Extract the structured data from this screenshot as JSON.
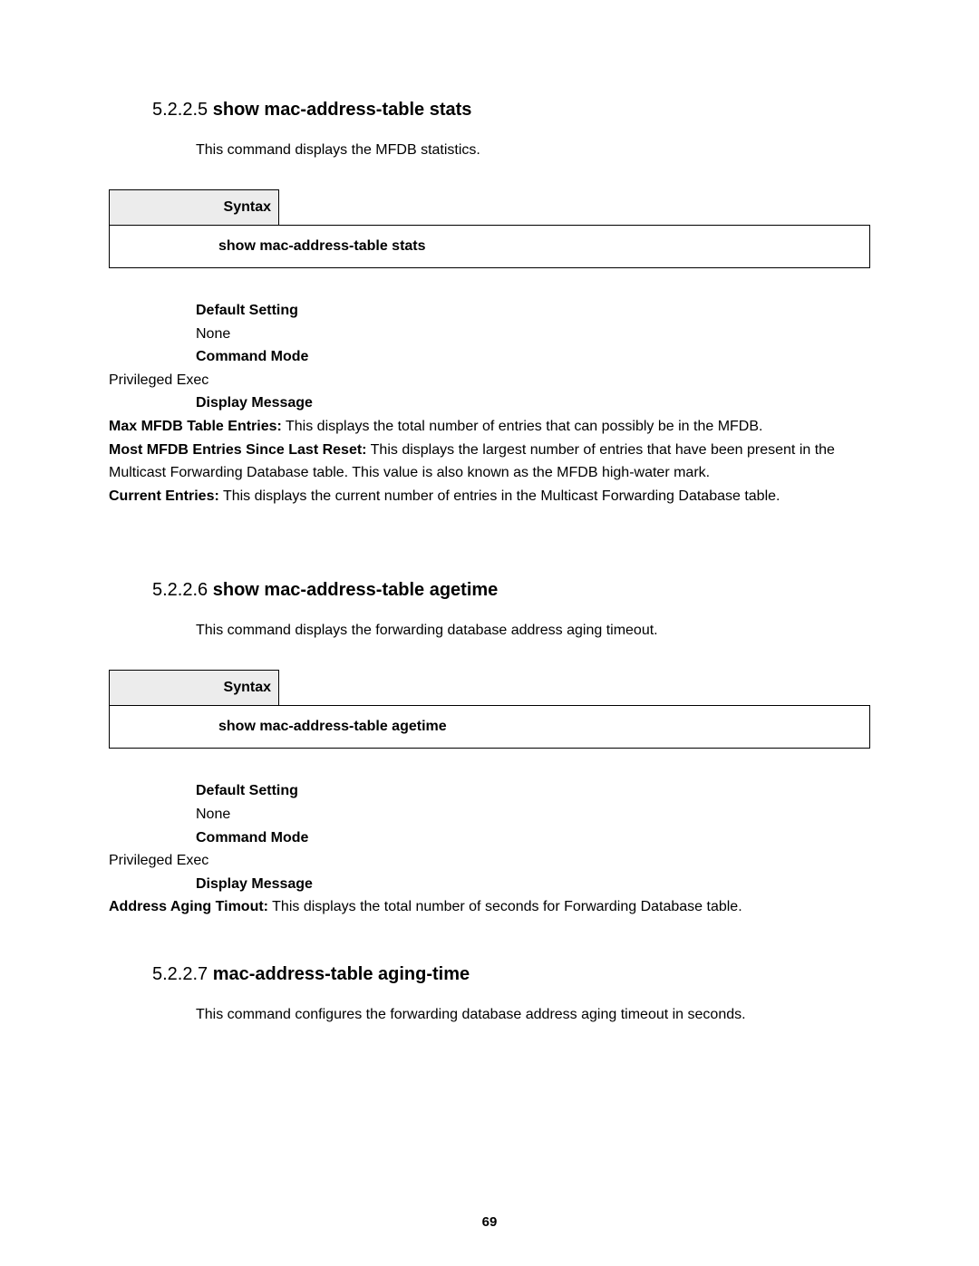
{
  "page_number": "69",
  "sections": [
    {
      "number": "5.2.2.5",
      "title": "show mac-address-table stats",
      "intro": "This command displays the MFDB statistics.",
      "syntax_label": "Syntax",
      "syntax_cmd": "show mac-address-table stats",
      "default_label": "Default Setting",
      "default_val": "None",
      "mode_label": "Command Mode",
      "mode_val": "Privileged Exec",
      "display_label": "Display Message",
      "entries": [
        {
          "k": "Max MFDB Table Entries:",
          "v": " This displays the total number of entries that can possibly be in the MFDB."
        },
        {
          "k": "Most MFDB Entries Since Last Reset:",
          "v": " This displays the largest number of entries that have been present in the Multicast Forwarding Database table. This value is also known as the MFDB high-water mark."
        },
        {
          "k": "Current Entries:",
          "v": " This displays the current number of entries in the Multicast Forwarding Database table."
        }
      ]
    },
    {
      "number": "5.2.2.6",
      "title": "show mac-address-table agetime",
      "intro": "This command displays the forwarding database address aging timeout.",
      "syntax_label": "Syntax",
      "syntax_cmd": "show mac-address-table agetime",
      "default_label": "Default Setting",
      "default_val": "None",
      "mode_label": "Command Mode",
      "mode_val": "Privileged Exec",
      "display_label": "Display Message",
      "entries": [
        {
          "k": "Address Aging Timout:",
          "v": " This displays the total number of seconds for Forwarding Database table."
        }
      ]
    },
    {
      "number": "5.2.2.7",
      "title": "mac-address-table aging-time",
      "intro": "This command configures the forwarding database address aging timeout in seconds."
    }
  ]
}
